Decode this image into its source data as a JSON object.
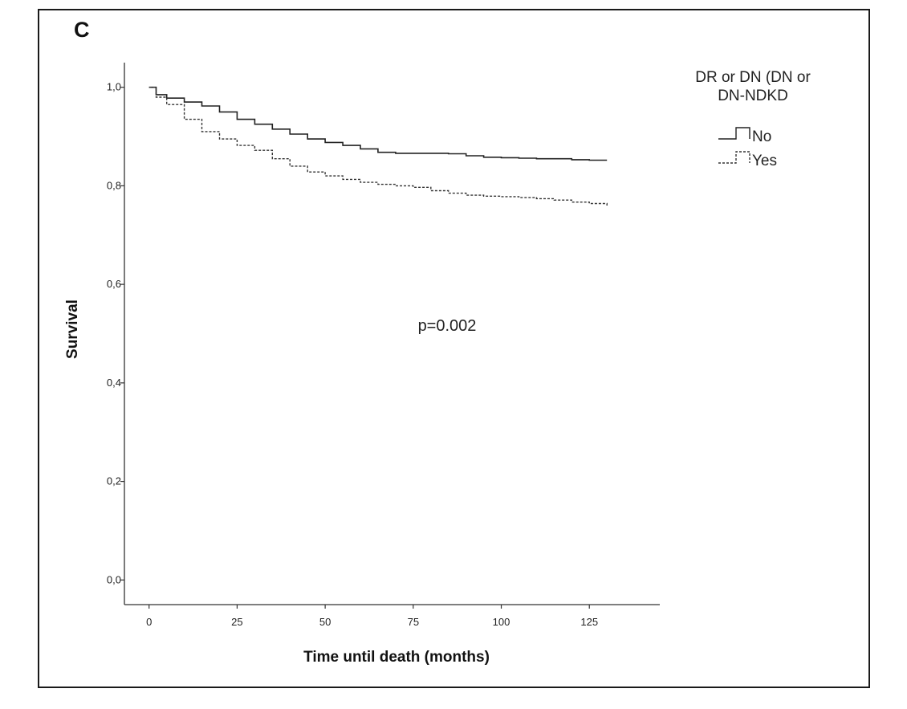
{
  "panel_label": "C",
  "chart_data": {
    "type": "line",
    "subtype": "kaplan-meier",
    "title": "",
    "xlabel": "Time until death (months)",
    "ylabel": "Survival",
    "xlim": [
      -7,
      145
    ],
    "ylim": [
      -0.05,
      1.05
    ],
    "x_ticks": [
      0,
      25,
      50,
      75,
      100,
      125
    ],
    "x_tick_labels": [
      "0",
      "25",
      "50",
      "75",
      "100",
      "125"
    ],
    "y_ticks": [
      0.0,
      0.2,
      0.4,
      0.6,
      0.8,
      1.0
    ],
    "y_tick_labels": [
      "0,0",
      "0,2",
      "0,4",
      "0,6",
      "0,8",
      "1,0"
    ],
    "grid": false,
    "legend_title": "DR or DN (DN or DN-NDKD",
    "legend_title_lines": [
      "DR or DN (DN or",
      "DN-NDKD"
    ],
    "legend_position": "top-right",
    "annotation": "p=0.002",
    "series": [
      {
        "name": "No",
        "style": "solid",
        "color": "#222222",
        "x": [
          0,
          2,
          5,
          10,
          15,
          20,
          25,
          30,
          35,
          40,
          45,
          50,
          55,
          60,
          65,
          70,
          75,
          80,
          85,
          90,
          95,
          100,
          105,
          110,
          115,
          120,
          125,
          130
        ],
        "y": [
          1.0,
          0.985,
          0.978,
          0.97,
          0.962,
          0.95,
          0.935,
          0.925,
          0.915,
          0.905,
          0.895,
          0.888,
          0.882,
          0.875,
          0.868,
          0.866,
          0.866,
          0.866,
          0.865,
          0.861,
          0.858,
          0.857,
          0.856,
          0.855,
          0.855,
          0.853,
          0.852,
          0.852
        ]
      },
      {
        "name": "Yes",
        "style": "dashed",
        "color": "#333333",
        "x": [
          0,
          2,
          5,
          10,
          15,
          20,
          25,
          30,
          35,
          40,
          45,
          50,
          55,
          60,
          65,
          70,
          75,
          80,
          85,
          90,
          95,
          100,
          105,
          110,
          115,
          120,
          125,
          130
        ],
        "y": [
          1.0,
          0.98,
          0.965,
          0.935,
          0.91,
          0.895,
          0.882,
          0.872,
          0.855,
          0.84,
          0.828,
          0.82,
          0.813,
          0.807,
          0.803,
          0.8,
          0.797,
          0.79,
          0.785,
          0.781,
          0.779,
          0.778,
          0.776,
          0.774,
          0.771,
          0.767,
          0.764,
          0.76
        ]
      }
    ]
  }
}
